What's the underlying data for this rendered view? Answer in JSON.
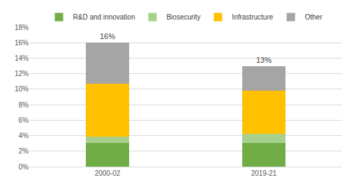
{
  "chart_data": {
    "type": "bar",
    "stacked": true,
    "grid": true,
    "legend": "top",
    "categories": [
      "2000-02",
      "2019-21"
    ],
    "series": [
      {
        "name": "R&D and innovation",
        "color": "#70ad47",
        "values": [
          3.1,
          3.1
        ]
      },
      {
        "name": "Biosecurity",
        "color": "#a9d18e",
        "values": [
          0.8,
          1.1
        ]
      },
      {
        "name": "Infrastructure",
        "color": "#ffc000",
        "values": [
          6.8,
          5.6
        ]
      },
      {
        "name": "Other",
        "color": "#a5a5a5",
        "values": [
          5.3,
          3.2
        ]
      }
    ],
    "totals": [
      16,
      13
    ],
    "total_labels": [
      "16%",
      "13%"
    ],
    "ylim": [
      0,
      18
    ],
    "yticks": [
      {
        "value": 0,
        "label": "0%"
      },
      {
        "value": 2,
        "label": "2%"
      },
      {
        "value": 4,
        "label": "4%"
      },
      {
        "value": 6,
        "label": "6%"
      },
      {
        "value": 8,
        "label": "8%"
      },
      {
        "value": 10,
        "label": "10%"
      },
      {
        "value": 12,
        "label": "12%"
      },
      {
        "value": 14,
        "label": "14%"
      },
      {
        "value": 16,
        "label": "16%"
      },
      {
        "value": 18,
        "label": "18%"
      }
    ]
  }
}
